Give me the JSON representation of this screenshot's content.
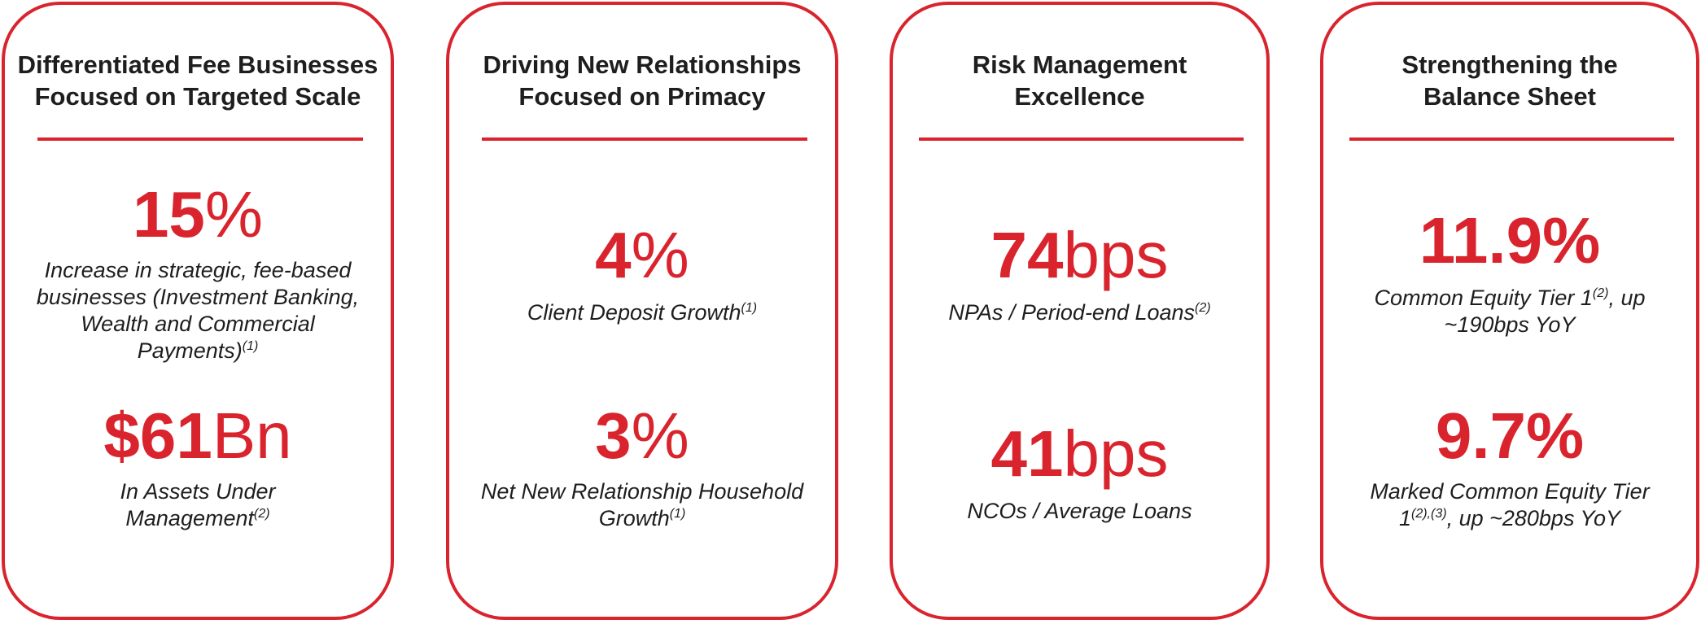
{
  "accent_color": "#d9242e",
  "cards": [
    {
      "title": [
        "Differentiated Fee Businesses",
        "Focused on Targeted Scale"
      ],
      "metrics": [
        {
          "value": "15",
          "unit": "%",
          "desc": "Increase in strategic, fee-based businesses (Investment Banking, Wealth and Commercial Payments)",
          "sup": "(1)"
        },
        {
          "value": "$61",
          "unit": "Bn",
          "desc": "In Assets Under Management",
          "sup": "(2)"
        }
      ]
    },
    {
      "title": [
        "Driving New Relationships",
        "Focused on Primacy"
      ],
      "metrics": [
        {
          "value": "4",
          "unit": "%",
          "desc": "Client Deposit Growth",
          "sup": "(1)"
        },
        {
          "value": "3",
          "unit": "%",
          "desc": "Net New Relationship Household Growth",
          "sup": "(1)"
        }
      ]
    },
    {
      "title": [
        "Risk Management",
        "Excellence"
      ],
      "metrics": [
        {
          "value": "74",
          "unit": "bps",
          "desc": "NPAs / Period-end Loans",
          "sup": "(2)"
        },
        {
          "value": "41",
          "unit": "bps",
          "desc": "NCOs / Average Loans",
          "sup": ""
        }
      ]
    },
    {
      "title": [
        "Strengthening the",
        "Balance Sheet"
      ],
      "metrics": [
        {
          "value": "11.9%",
          "unit": "",
          "desc_a": "Common Equity Tier 1",
          "sup": "(2)",
          "desc_b": ", up ~190bps YoY"
        },
        {
          "value": "9.7%",
          "unit": "",
          "desc_a": "Marked Common Equity Tier 1",
          "sup": "(2),(3)",
          "desc_b": ", up ~280bps YoY"
        }
      ]
    }
  ]
}
